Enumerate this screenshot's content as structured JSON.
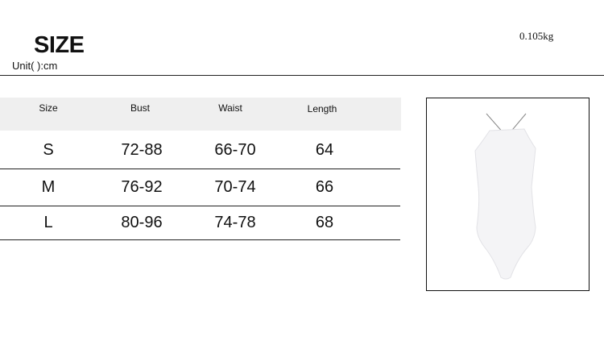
{
  "header": {
    "title": "SIZE",
    "unit": "Unit(    ):cm",
    "weight": "0.105kg"
  },
  "table": {
    "columns": [
      "Size",
      "Bust",
      "Waist",
      "Length"
    ],
    "rows": [
      [
        "S",
        "72-88",
        "66-70",
        "64"
      ],
      [
        "M",
        "76-92",
        "70-74",
        "66"
      ],
      [
        "L",
        "80-96",
        "74-78",
        "68"
      ]
    ]
  },
  "product_image": {
    "icon": "white-halter-bodysuit"
  }
}
